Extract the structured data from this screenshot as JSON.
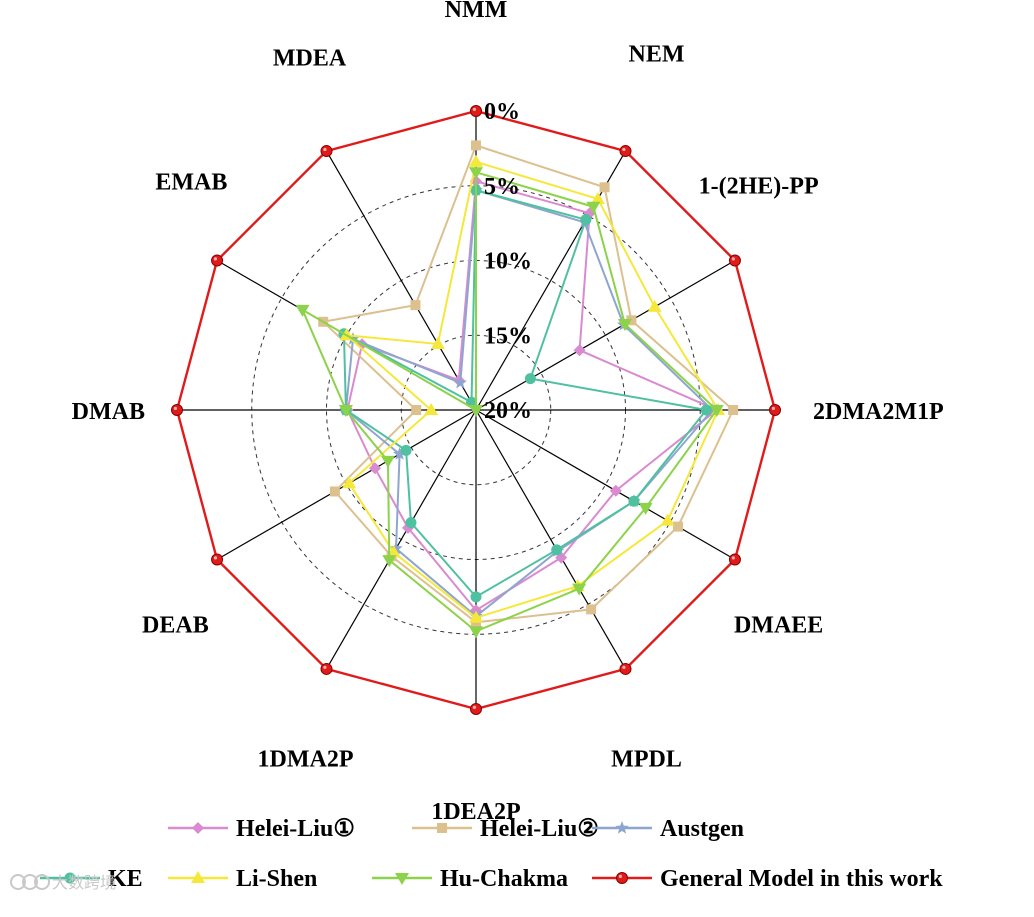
{
  "chart_data": {
    "type": "radar",
    "axes": [
      "NMM",
      "NEM",
      "1-(2HE)-PP",
      "2DMA2M1P",
      "DMAEE",
      "MPDL",
      "1DEA2P",
      "1DMA2P",
      "DEAB",
      "DMAB",
      "EMAB",
      "MDEA"
    ],
    "radial_ticks": [
      "0%",
      "5%",
      "10%",
      "15%",
      "20%"
    ],
    "radial_range": [
      0,
      20
    ],
    "radial_reversed": true,
    "grid": "dashed circles and spokes",
    "legend_position": "bottom",
    "series": [
      {
        "name": "Helei-Liu①",
        "color": "#d98ad0",
        "marker": "diamond",
        "values": [
          4.7,
          4.8,
          12.0,
          3.9,
          9.2,
          8.6,
          6.6,
          10.9,
          12.2,
          11.4,
          11.2,
          17.7
        ]
      },
      {
        "name": "Helei-Liu②",
        "color": "#dcc08e",
        "marker": "square",
        "values": [
          2.3,
          2.8,
          8.0,
          2.8,
          4.4,
          4.6,
          5.8,
          8.7,
          9.1,
          16.0,
          8.2,
          11.9
        ]
      },
      {
        "name": "Austgen",
        "color": "#8ea6cf",
        "marker": "star",
        "values": [
          5.3,
          5.5,
          8.6,
          4.2,
          7.8,
          9.1,
          6.2,
          9.3,
          14.1,
          11.3,
          10.5,
          17.9
        ]
      },
      {
        "name": "KE",
        "color": "#4fc0a0",
        "marker": "circle",
        "values": [
          5.3,
          5.3,
          15.8,
          4.6,
          7.8,
          9.2,
          7.5,
          11.3,
          14.6,
          11.3,
          9.8,
          19.4
        ]
      },
      {
        "name": "Li-Shen",
        "color": "#f5e83a",
        "marker": "triangle-up",
        "values": [
          3.4,
          3.7,
          6.2,
          3.8,
          5.2,
          6.4,
          6.1,
          9.0,
          10.2,
          17.0,
          10.0,
          14.9
        ]
      },
      {
        "name": "Hu-Chakma",
        "color": "#8cd24a",
        "marker": "triangle-down",
        "values": [
          4.1,
          4.3,
          8.5,
          3.9,
          6.9,
          6.2,
          5.2,
          8.4,
          13.2,
          11.3,
          6.6,
          20.0
        ]
      },
      {
        "name": "General Model in this work",
        "color": "#e11a1a",
        "marker": "circle",
        "values": [
          0,
          0,
          0,
          0,
          0,
          0,
          0,
          0,
          0,
          0,
          0,
          0
        ]
      }
    ]
  },
  "watermark": "大数跨境"
}
